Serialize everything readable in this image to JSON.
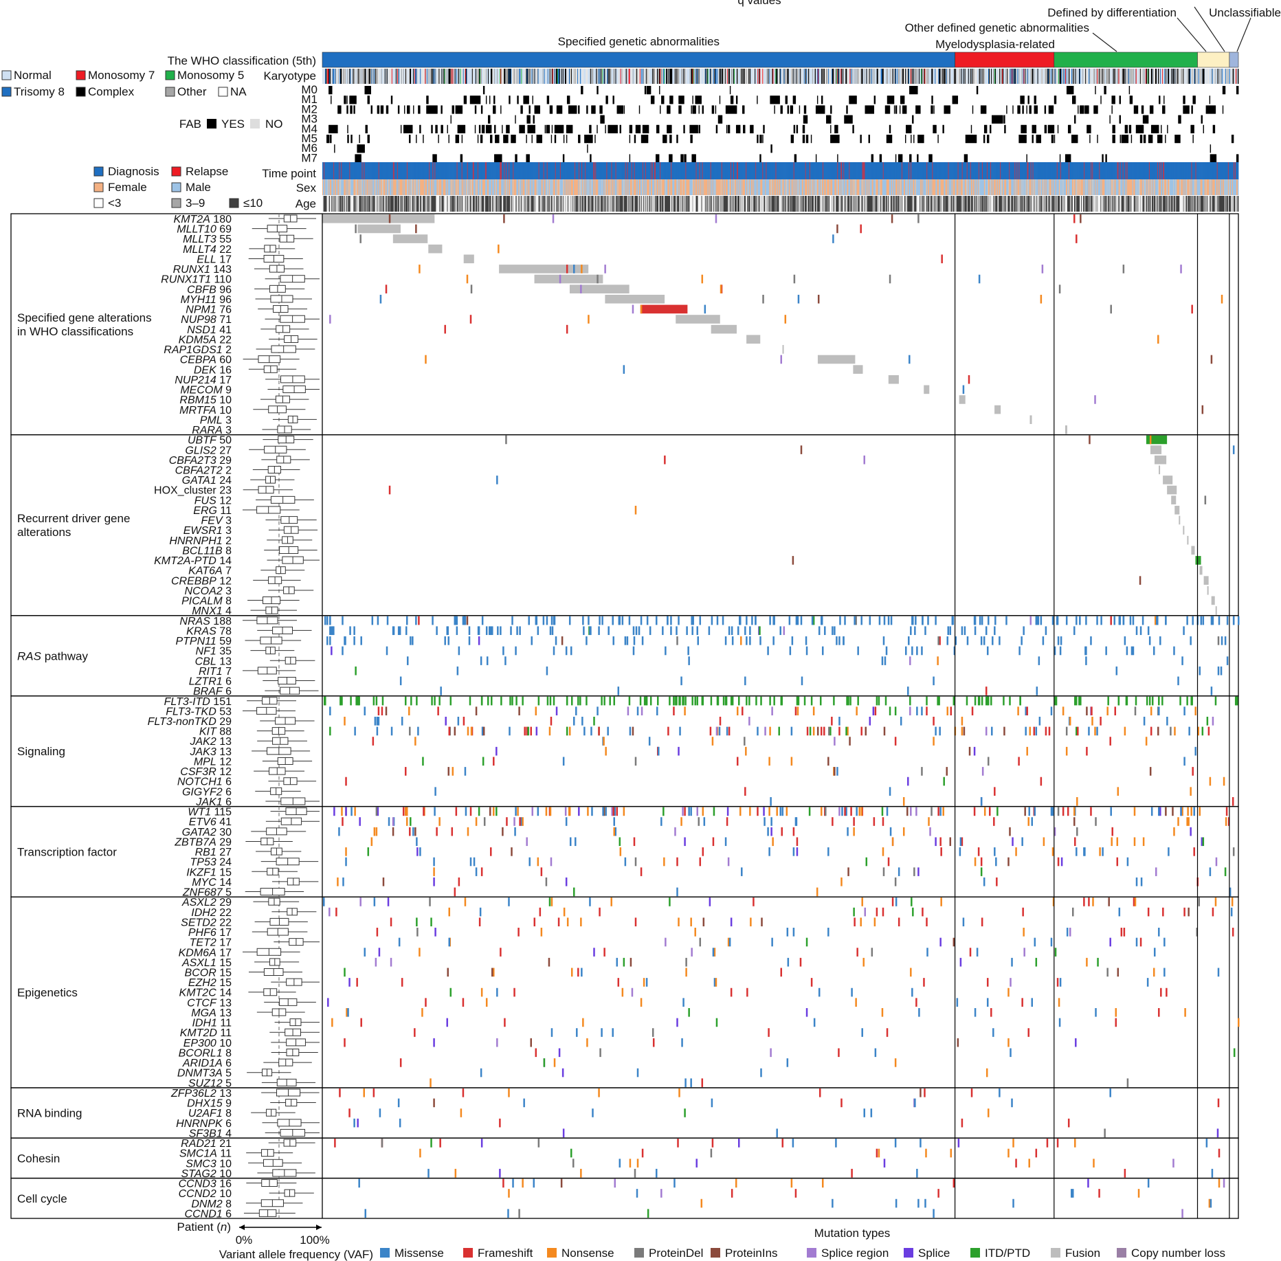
{
  "chart_data": {
    "type": "heatmap",
    "title_cut": "q values",
    "who_classification": {
      "label": "The WHO classification (5th)",
      "categories": [
        {
          "name": "Specified genetic abnormalities",
          "color": "#1f6fc1",
          "n": 913
        },
        {
          "name": "Myelodysplasia-related",
          "color": "#ee1c24",
          "n": 143
        },
        {
          "name": "Other defined genetic abnormalities",
          "color": "#21b04b",
          "n": 207
        },
        {
          "name": "Defined by differentiation",
          "color": "#fdf0c3",
          "n": 46
        },
        {
          "name": "Unclassifiable",
          "color": "#9fb5dc",
          "n": 13
        }
      ]
    },
    "annotation_rows": {
      "karyotype": {
        "label": "Karyotype",
        "legend": [
          {
            "name": "Normal",
            "color": "#cfe0f2"
          },
          {
            "name": "Monosomy 7",
            "color": "#ee1c24"
          },
          {
            "name": "Monosomy 5",
            "color": "#21b04b"
          },
          {
            "name": "Trisomy 8",
            "color": "#1f6fc1"
          },
          {
            "name": "Complex",
            "color": "#000000"
          },
          {
            "name": "Other",
            "color": "#a6a6a6"
          },
          {
            "name": "NA",
            "color": "#ffffff"
          }
        ]
      },
      "fab": {
        "label": "FAB",
        "subtypes": [
          "M0",
          "M1",
          "M2",
          "M3",
          "M4",
          "M5",
          "M6",
          "M7"
        ],
        "legend": [
          {
            "name": "YES",
            "color": "#000000"
          },
          {
            "name": "NO",
            "color": "#dddddd"
          }
        ]
      },
      "time_point": {
        "label": "Time point",
        "legend": [
          {
            "name": "Diagnosis",
            "color": "#1f6fc1"
          },
          {
            "name": "Relapse",
            "color": "#ee1c24"
          }
        ]
      },
      "sex": {
        "label": "Sex",
        "legend": [
          {
            "name": "Female",
            "color": "#f4b183"
          },
          {
            "name": "Male",
            "color": "#9dc3e6"
          }
        ]
      },
      "age": {
        "label": "Age",
        "legend": [
          {
            "name": "<3",
            "color": "#ffffff"
          },
          {
            "name": "3–9",
            "color": "#a6a6a6"
          },
          {
            "name": "≤10",
            "color": "#404040"
          }
        ]
      }
    },
    "gene_groups": [
      {
        "name": "Specified gene alterations\nin WHO classifications",
        "genes": [
          {
            "g": "KMT2A",
            "n": 180
          },
          {
            "g": "MLLT10",
            "n": 69
          },
          {
            "g": "MLLT3",
            "n": 55
          },
          {
            "g": "MLLT4",
            "n": 22
          },
          {
            "g": "ELL",
            "n": 17
          },
          {
            "g": "RUNX1",
            "n": 143
          },
          {
            "g": "RUNX1T1",
            "n": 110
          },
          {
            "g": "CBFB",
            "n": 96
          },
          {
            "g": "MYH11",
            "n": 96
          },
          {
            "g": "NPM1",
            "n": 76
          },
          {
            "g": "NUP98",
            "n": 71
          },
          {
            "g": "NSD1",
            "n": 41
          },
          {
            "g": "KDM5A",
            "n": 22
          },
          {
            "g": "RAP1GDS1",
            "n": 2
          },
          {
            "g": "CEBPA",
            "n": 60
          },
          {
            "g": "DEK",
            "n": 16
          },
          {
            "g": "NUP214",
            "n": 17
          },
          {
            "g": "MECOM",
            "n": 9
          },
          {
            "g": "RBM15",
            "n": 10
          },
          {
            "g": "MRTFA",
            "n": 10
          },
          {
            "g": "PML",
            "n": 3
          },
          {
            "g": "RARA",
            "n": 3
          }
        ]
      },
      {
        "name": "Recurrent driver gene\nalterations",
        "genes": [
          {
            "g": "UBTF",
            "n": 50
          },
          {
            "g": "GLIS2",
            "n": 27
          },
          {
            "g": "CBFA2T3",
            "n": 29
          },
          {
            "g": "CBFA2T2",
            "n": 2
          },
          {
            "g": "GATA1",
            "n": 24
          },
          {
            "g": "HOX_cluster",
            "n": 23
          },
          {
            "g": "FUS",
            "n": 12
          },
          {
            "g": "ERG",
            "n": 11
          },
          {
            "g": "FEV",
            "n": 3
          },
          {
            "g": "EWSR1",
            "n": 3
          },
          {
            "g": "HNRNPH1",
            "n": 2
          },
          {
            "g": "BCL11B",
            "n": 8
          },
          {
            "g": "KMT2A-PTD",
            "n": 14
          },
          {
            "g": "KAT6A",
            "n": 7
          },
          {
            "g": "CREBBP",
            "n": 12
          },
          {
            "g": "NCOA2",
            "n": 3
          },
          {
            "g": "PICALM",
            "n": 8
          },
          {
            "g": "MNX1",
            "n": 4
          }
        ]
      },
      {
        "name": "RAS pathway",
        "genes": [
          {
            "g": "NRAS",
            "n": 188
          },
          {
            "g": "KRAS",
            "n": 78
          },
          {
            "g": "PTPN11",
            "n": 59
          },
          {
            "g": "NF1",
            "n": 35
          },
          {
            "g": "CBL",
            "n": 13
          },
          {
            "g": "RIT1",
            "n": 7
          },
          {
            "g": "LZTR1",
            "n": 6
          },
          {
            "g": "BRAF",
            "n": 6
          }
        ]
      },
      {
        "name": "Signaling",
        "genes": [
          {
            "g": "FLT3-ITD",
            "n": 151
          },
          {
            "g": "FLT3-TKD",
            "n": 53
          },
          {
            "g": "FLT3-nonTKD",
            "n": 29
          },
          {
            "g": "KIT",
            "n": 88
          },
          {
            "g": "JAK2",
            "n": 13
          },
          {
            "g": "JAK3",
            "n": 13
          },
          {
            "g": "MPL",
            "n": 12
          },
          {
            "g": "CSF3R",
            "n": 12
          },
          {
            "g": "NOTCH1",
            "n": 6
          },
          {
            "g": "GIGYF2",
            "n": 6
          },
          {
            "g": "JAK1",
            "n": 6
          }
        ]
      },
      {
        "name": "Transcription factor",
        "genes": [
          {
            "g": "WT1",
            "n": 115
          },
          {
            "g": "ETV6",
            "n": 41
          },
          {
            "g": "GATA2",
            "n": 30
          },
          {
            "g": "ZBTB7A",
            "n": 29
          },
          {
            "g": "RB1",
            "n": 27
          },
          {
            "g": "TP53",
            "n": 24
          },
          {
            "g": "IKZF1",
            "n": 15
          },
          {
            "g": "MYC",
            "n": 14
          },
          {
            "g": "ZNF687",
            "n": 5
          }
        ]
      },
      {
        "name": "Epigenetics",
        "genes": [
          {
            "g": "ASXL2",
            "n": 29
          },
          {
            "g": "IDH2",
            "n": 22
          },
          {
            "g": "SETD2",
            "n": 22
          },
          {
            "g": "PHF6",
            "n": 17
          },
          {
            "g": "TET2",
            "n": 17
          },
          {
            "g": "KDM6A",
            "n": 17
          },
          {
            "g": "ASXL1",
            "n": 15
          },
          {
            "g": "BCOR",
            "n": 15
          },
          {
            "g": "EZH2",
            "n": 15
          },
          {
            "g": "KMT2C",
            "n": 14
          },
          {
            "g": "CTCF",
            "n": 13
          },
          {
            "g": "MGA",
            "n": 13
          },
          {
            "g": "IDH1",
            "n": 11
          },
          {
            "g": "KMT2D",
            "n": 11
          },
          {
            "g": "EP300",
            "n": 10
          },
          {
            "g": "BCORL1",
            "n": 8
          },
          {
            "g": "ARID1A",
            "n": 6
          },
          {
            "g": "DNMT3A",
            "n": 5
          },
          {
            "g": "SUZ12",
            "n": 5
          }
        ]
      },
      {
        "name": "RNA binding",
        "genes": [
          {
            "g": "ZFP36L2",
            "n": 13
          },
          {
            "g": "DHX15",
            "n": 9
          },
          {
            "g": "U2AF1",
            "n": 8
          },
          {
            "g": "HNRNPK",
            "n": 6
          },
          {
            "g": "SF3B1",
            "n": 4
          }
        ]
      },
      {
        "name": "Cohesin",
        "genes": [
          {
            "g": "RAD21",
            "n": 21
          },
          {
            "g": "SMC1A",
            "n": 11
          },
          {
            "g": "SMC3",
            "n": 10
          },
          {
            "g": "STAG2",
            "n": 10
          }
        ]
      },
      {
        "name": "Cell cycle",
        "genes": [
          {
            "g": "CCND3",
            "n": 16
          },
          {
            "g": "CCND2",
            "n": 10
          },
          {
            "g": "DNM2",
            "n": 8
          },
          {
            "g": "CCND1",
            "n": 6
          }
        ]
      }
    ],
    "vaf_boxplot": {
      "xlabel": "Variant allele frequency (VAF)",
      "ticks": [
        "0%",
        "100%"
      ],
      "patient_label": "Patient (n)"
    },
    "mutation_types": {
      "title": "Mutation types",
      "legend": [
        {
          "name": "Missense",
          "color": "#3b84c8"
        },
        {
          "name": "Frameshift",
          "color": "#d93131"
        },
        {
          "name": "Nonsense",
          "color": "#f4891f"
        },
        {
          "name": "ProteinDel",
          "color": "#7a7a7a"
        },
        {
          "name": "ProteinIns",
          "color": "#8b4a3c"
        },
        {
          "name": "Splice region",
          "color": "#a27bd1"
        },
        {
          "name": "Splice",
          "color": "#6a3de0"
        },
        {
          "name": "ITD/PTD",
          "color": "#2ca02c"
        },
        {
          "name": "Fusion",
          "color": "#bdbdbd"
        },
        {
          "name": "Copy number loss",
          "color": "#9a7fa5"
        }
      ]
    }
  }
}
